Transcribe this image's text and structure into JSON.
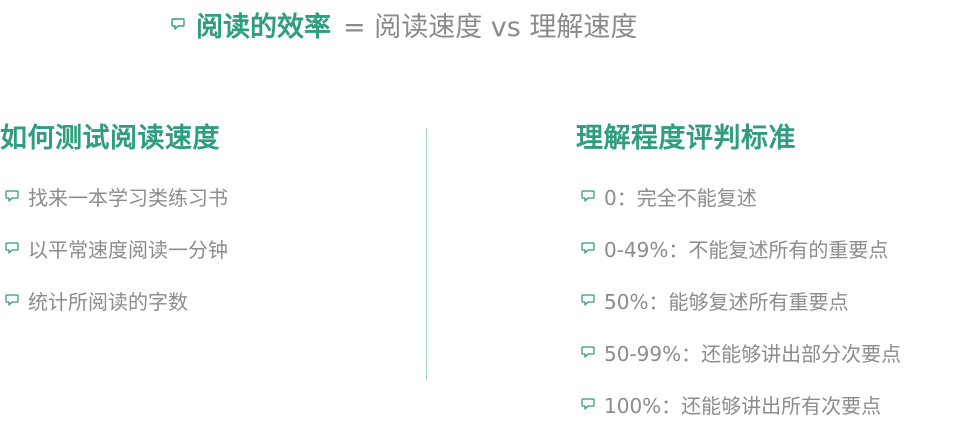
{
  "title": {
    "strong": "阅读的效率",
    "rest": "= 阅读速度 vs 理解速度"
  },
  "left": {
    "heading": "如何测试阅读速度",
    "items": [
      "找来一本学习类练习书",
      "以平常速度阅读一分钟",
      "统计所阅读的字数"
    ]
  },
  "right": {
    "heading": "理解程度评判标准",
    "items": [
      "0：完全不能复述",
      "0-49%：不能复述所有的重要点",
      "50%：能够复述所有重要点",
      "50-99%：还能够讲出部分次要点",
      "100%：还能够讲出所有次要点"
    ]
  },
  "colors": {
    "accent": "#2f9d7f",
    "text": "#8c8c8c",
    "divider": "#9fd2c2"
  },
  "icons": {
    "bullet": "speech-bubble-icon"
  }
}
